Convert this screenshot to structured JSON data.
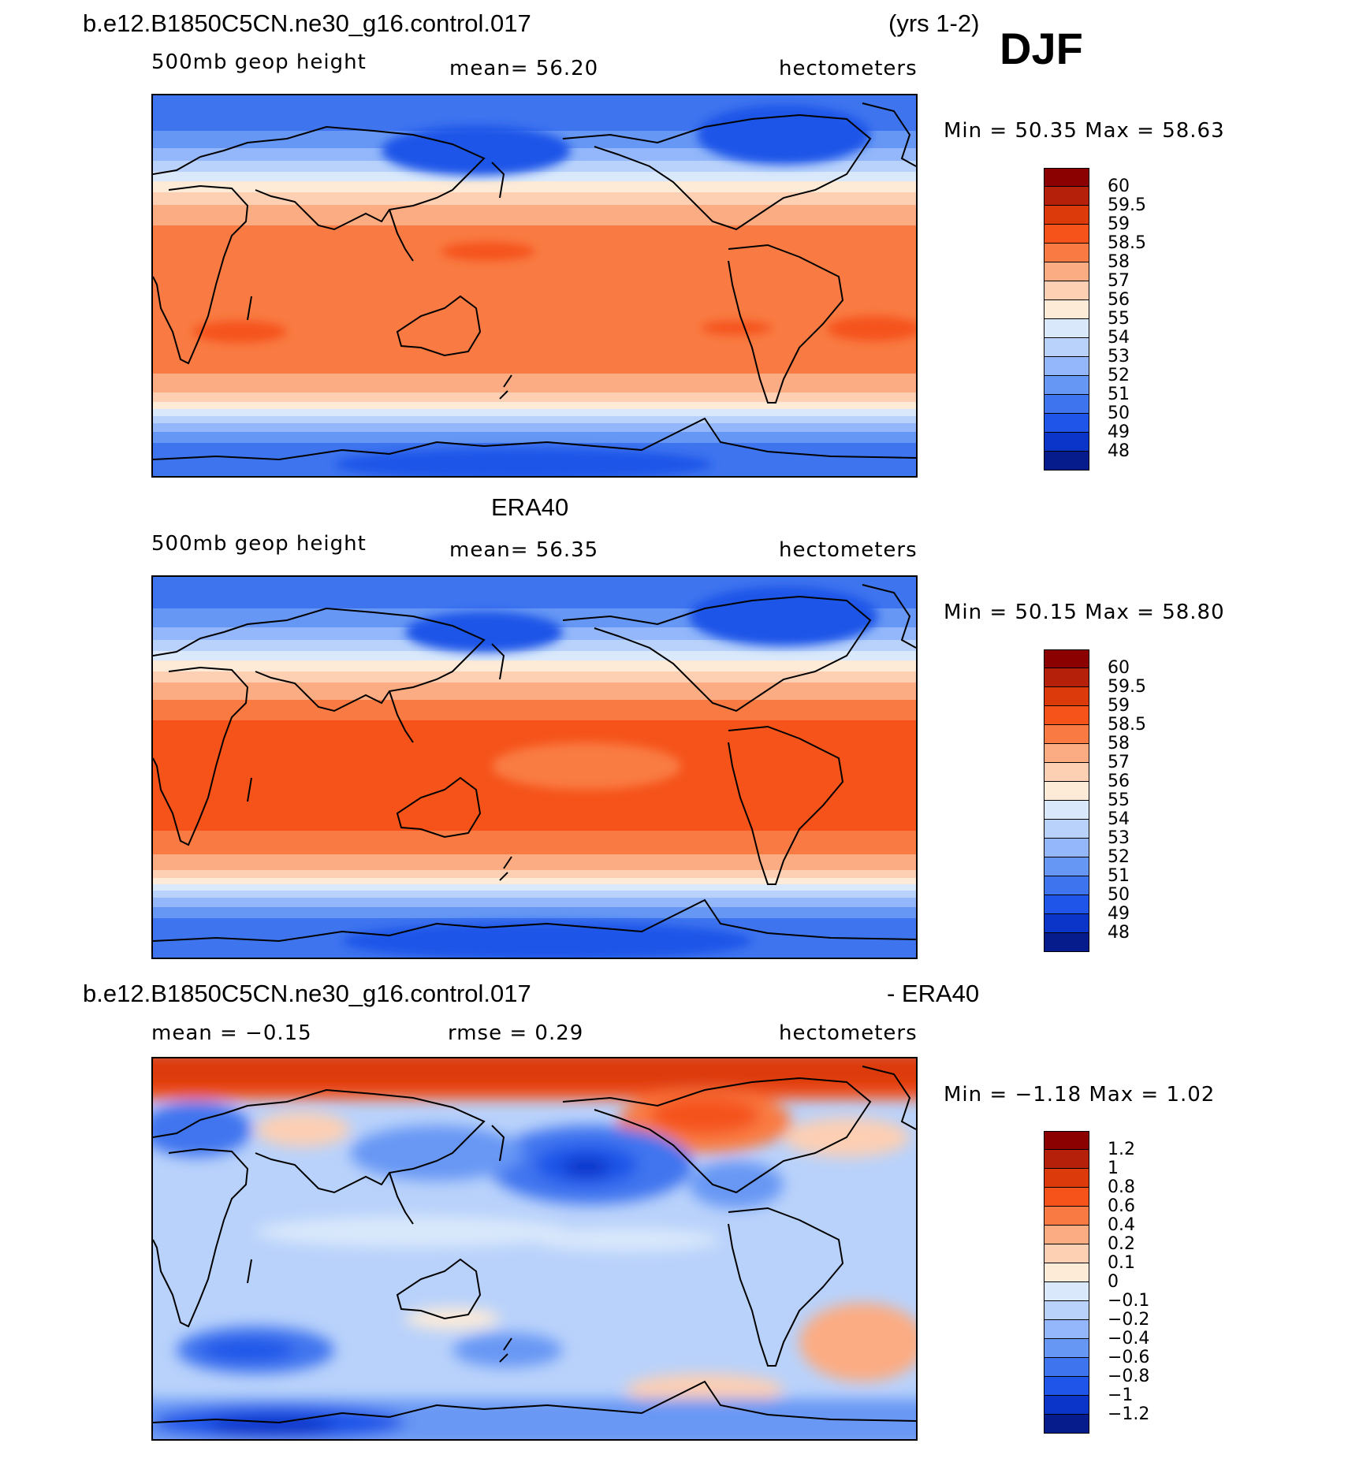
{
  "figure": {
    "case_name": "b.e12.B1850C5CN.ne30_g16.control.017",
    "years": "(yrs 1-2)",
    "season": "DJF"
  },
  "chart_data": [
    {
      "type": "heatmap",
      "title": "b.e12.B1850C5CN.ne30_g16.control.017",
      "variable": "500mb geop height",
      "stat_left": "mean=   56.20",
      "units": "hectometers",
      "minmax": "Min =    50.35  Max =    58.63",
      "min": 50.35,
      "max": 58.63,
      "mean": 56.2,
      "legend_levels": [
        "60",
        "59.5",
        "59",
        "58.5",
        "58",
        "57",
        "56",
        "55",
        "54",
        "53",
        "52",
        "51",
        "50",
        "49",
        "48"
      ],
      "legend_colors": [
        "#8b0000",
        "#b5200b",
        "#dd3a0b",
        "#f5531a",
        "#f97b43",
        "#fcac82",
        "#fdcfb3",
        "#fdebd8",
        "#d9e8fb",
        "#b9d2fb",
        "#93b7fa",
        "#6797f4",
        "#3f74ef",
        "#1f55e8",
        "#0b35c8",
        "#061c8c"
      ]
    },
    {
      "type": "heatmap",
      "title": "ERA40",
      "variable": "500mb geop height",
      "stat_left": "mean=   56.35",
      "units": "hectometers",
      "minmax": "Min =    50.15  Max =    58.80",
      "min": 50.15,
      "max": 58.8,
      "mean": 56.35,
      "legend_levels": [
        "60",
        "59.5",
        "59",
        "58.5",
        "58",
        "57",
        "56",
        "55",
        "54",
        "53",
        "52",
        "51",
        "50",
        "49",
        "48"
      ],
      "legend_colors": [
        "#8b0000",
        "#b5200b",
        "#dd3a0b",
        "#f5531a",
        "#f97b43",
        "#fcac82",
        "#fdcfb3",
        "#fdebd8",
        "#d9e8fb",
        "#b9d2fb",
        "#93b7fa",
        "#6797f4",
        "#3f74ef",
        "#1f55e8",
        "#0b35c8",
        "#061c8c"
      ]
    },
    {
      "type": "heatmap",
      "title": "b.e12.B1850C5CN.ne30_g16.control.017",
      "title_right": "- ERA40",
      "stat_left": "mean =    −0.15",
      "stat_mid": "rmse =     0.29",
      "units": "hectometers",
      "minmax": "Min =    −1.18  Max =     1.02",
      "min": -1.18,
      "max": 1.02,
      "mean": -0.15,
      "rmse": 0.29,
      "legend_levels": [
        "1.2",
        "1",
        "0.8",
        "0.6",
        "0.4",
        "0.2",
        "0.1",
        "0",
        "−0.1",
        "−0.2",
        "−0.4",
        "−0.6",
        "−0.8",
        "−1",
        "−1.2"
      ],
      "legend_colors": [
        "#8b0000",
        "#b5200b",
        "#dd3a0b",
        "#f5531a",
        "#f97b43",
        "#fcac82",
        "#fdcfb3",
        "#fdebd8",
        "#d9e8fb",
        "#b9d2fb",
        "#93b7fa",
        "#6797f4",
        "#3f74ef",
        "#1f55e8",
        "#0b35c8",
        "#061c8c"
      ]
    }
  ]
}
